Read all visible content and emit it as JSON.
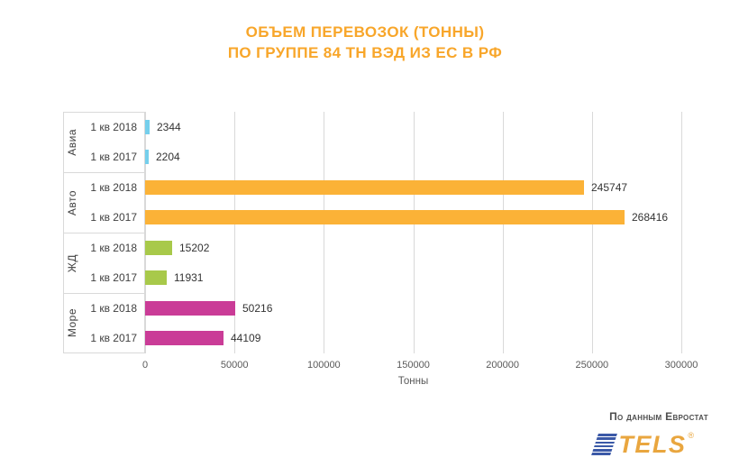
{
  "title": {
    "line1": "ОБЪЕМ ПЕРЕВОЗОК (ТОННЫ)",
    "line2": "ПО ГРУППЕ 84 ТН ВЭД ИЗ ЕС В РФ"
  },
  "chart_data": {
    "type": "bar",
    "orientation": "horizontal",
    "title": "ОБЪЕМ ПЕРЕВОЗОК (ТОННЫ) ПО ГРУППЕ 84 ТН ВЭД ИЗ ЕС В РФ",
    "xlabel": "Тонны",
    "ylabel": "",
    "grid": true,
    "value_labels": true,
    "x_axis": {
      "ticks": [
        0,
        50000,
        100000,
        150000,
        200000,
        250000,
        300000
      ],
      "max": 300000,
      "label": "Тонны"
    },
    "groups": [
      {
        "name": "Авиа",
        "color": "#75CFEC",
        "bars": [
          {
            "label": "1 кв 2018",
            "value": 2344
          },
          {
            "label": "1 кв 2017",
            "value": 2204
          }
        ]
      },
      {
        "name": "Авто",
        "color": "#FBB237",
        "bars": [
          {
            "label": "1 кв 2018",
            "value": 245747
          },
          {
            "label": "1 кв 2017",
            "value": 268416
          }
        ]
      },
      {
        "name": "ЖД",
        "color": "#A8C94A",
        "bars": [
          {
            "label": "1 кв 2018",
            "value": 15202
          },
          {
            "label": "1 кв 2017",
            "value": 11931
          }
        ]
      },
      {
        "name": "Море",
        "color": "#CA3C97",
        "bars": [
          {
            "label": "1 кв 2018",
            "value": 50216
          },
          {
            "label": "1 кв 2017",
            "value": 44109
          }
        ]
      }
    ]
  },
  "footer": {
    "source": "По данным Евростат",
    "logo_text": "TELS",
    "logo_reg": "®"
  },
  "colors": {
    "title": "#F8A62A",
    "grid": "#D9D9D9",
    "axis_text": "#595959",
    "label_text": "#404040",
    "logo_blue": "#3B59A7",
    "logo_orange": "#E9A63F"
  }
}
